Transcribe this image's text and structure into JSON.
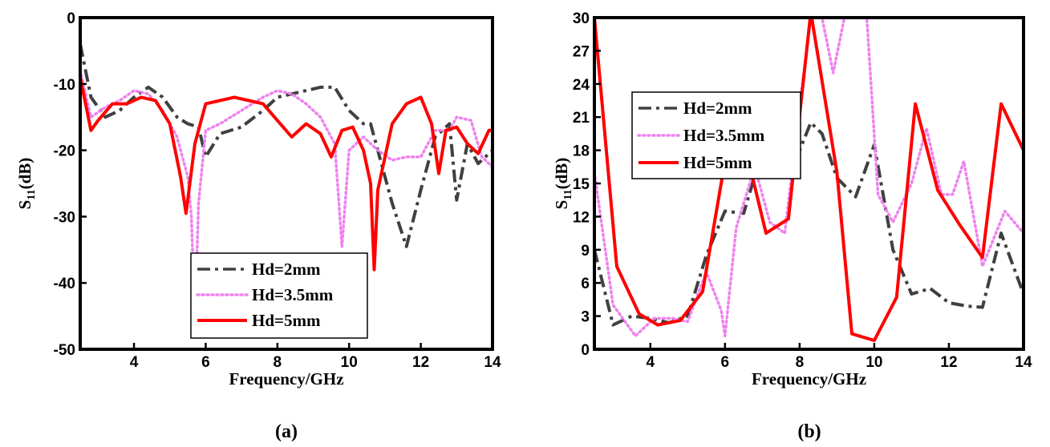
{
  "chart_data": [
    {
      "type": "line",
      "panel_label": "(a)",
      "xlabel": "Frequency/GHz",
      "ylabel_main": "S",
      "ylabel_sub": "11",
      "ylabel_suffix": "(dB)",
      "xlim": [
        2.5,
        14
      ],
      "ylim": [
        -50,
        0
      ],
      "xticks": [
        4,
        6,
        8,
        10,
        12,
        14
      ],
      "yticks": [
        -50,
        -40,
        -30,
        -20,
        -10,
        0
      ],
      "legend_placement": "lower-right",
      "series": [
        {
          "name": "Hd=2mm",
          "color": "#404040",
          "style": "dashdot",
          "x": [
            2.5,
            2.8,
            3.2,
            3.6,
            4.0,
            4.4,
            4.8,
            5.2,
            5.5,
            5.8,
            6.0,
            6.4,
            7.0,
            7.6,
            8.0,
            8.4,
            8.8,
            9.2,
            9.6,
            10.0,
            10.4,
            10.6,
            10.8,
            11.2,
            11.6,
            12.0,
            12.4,
            12.8,
            13.0,
            13.3,
            13.6,
            14.0
          ],
          "y": [
            -4,
            -12,
            -15,
            -14,
            -12,
            -10.5,
            -12,
            -15,
            -16,
            -16.5,
            -21,
            -17.5,
            -16.5,
            -14,
            -12,
            -11.5,
            -11,
            -10.5,
            -10.5,
            -14,
            -16,
            -16,
            -20,
            -28,
            -34.5,
            -26,
            -18,
            -16,
            -27.5,
            -19,
            -22,
            -20
          ]
        },
        {
          "name": "Hd=3.5mm",
          "color": "#ee82ee",
          "style": "dotted",
          "x": [
            2.5,
            2.8,
            3.2,
            3.6,
            4.0,
            4.4,
            4.8,
            5.2,
            5.5,
            5.6,
            5.7,
            5.8,
            6.0,
            6.4,
            7.0,
            7.6,
            8.0,
            8.4,
            8.8,
            9.2,
            9.6,
            9.8,
            10.0,
            10.4,
            10.8,
            11.2,
            11.6,
            12.0,
            12.4,
            12.8,
            13.0,
            13.4,
            13.7,
            14.0
          ],
          "y": [
            -8,
            -15,
            -13.5,
            -12.5,
            -11,
            -11.5,
            -14,
            -18,
            -24,
            -30,
            -46,
            -28,
            -17,
            -16,
            -14,
            -12,
            -11,
            -11.5,
            -13,
            -15,
            -19,
            -34.5,
            -20,
            -18,
            -20,
            -21.5,
            -21,
            -21,
            -17,
            -17,
            -15,
            -15.5,
            -21,
            -22.5
          ]
        },
        {
          "name": "Hd=5mm",
          "color": "#ff0000",
          "style": "solid",
          "x": [
            2.5,
            2.8,
            3.0,
            3.4,
            3.8,
            4.2,
            4.6,
            5.0,
            5.3,
            5.45,
            5.7,
            6.0,
            6.4,
            6.8,
            7.2,
            7.6,
            8.0,
            8.4,
            8.8,
            9.2,
            9.5,
            9.8,
            10.1,
            10.4,
            10.6,
            10.7,
            10.8,
            11.2,
            11.6,
            12.0,
            12.3,
            12.5,
            12.7,
            13.0,
            13.3,
            13.6,
            13.9,
            14.0
          ],
          "y": [
            -9,
            -17,
            -15.5,
            -13,
            -13,
            -12,
            -12.5,
            -16,
            -24,
            -29.5,
            -19,
            -13,
            -12.5,
            -12,
            -12.5,
            -13,
            -15.5,
            -18,
            -16,
            -17.5,
            -21,
            -17,
            -16.5,
            -20,
            -25,
            -38,
            -26,
            -16,
            -13,
            -12,
            -16,
            -23.5,
            -17,
            -16.5,
            -19,
            -20.5,
            -17,
            -17
          ]
        }
      ]
    },
    {
      "type": "line",
      "panel_label": "(b)",
      "xlabel": "Frequency/GHz",
      "ylabel_main": "S",
      "ylabel_sub": "11",
      "ylabel_suffix": "(dB)",
      "xlim": [
        2.5,
        14
      ],
      "ylim": [
        0,
        30
      ],
      "xticks": [
        4,
        6,
        8,
        10,
        12,
        14
      ],
      "yticks": [
        0,
        3,
        6,
        9,
        12,
        15,
        18,
        21,
        24,
        27,
        30
      ],
      "legend_placement": "top-left",
      "series": [
        {
          "name": "Hd=2mm",
          "color": "#404040",
          "style": "dashdot",
          "x": [
            2.5,
            3.0,
            3.5,
            4.0,
            4.5,
            5.0,
            5.5,
            6.0,
            6.5,
            7.0,
            7.5,
            8.0,
            8.3,
            8.6,
            9.0,
            9.5,
            10.0,
            10.5,
            11.0,
            11.5,
            12.0,
            12.5,
            12.9,
            13.4,
            14.0
          ],
          "y": [
            9,
            2.2,
            3,
            2.8,
            2.4,
            3,
            8.5,
            12.5,
            12.3,
            18,
            17,
            18,
            20.5,
            19.5,
            15.5,
            13.8,
            18.5,
            9,
            5,
            5.5,
            4.2,
            3.9,
            3.8,
            10.5,
            5
          ]
        },
        {
          "name": "Hd=3.5mm",
          "color": "#ee82ee",
          "style": "dotted",
          "x": [
            2.5,
            3.0,
            3.6,
            4.1,
            4.6,
            5.0,
            5.5,
            5.9,
            6.0,
            6.3,
            6.8,
            7.2,
            7.6,
            8.0,
            8.3,
            8.6,
            8.9,
            9.2,
            9.5,
            9.8,
            10.1,
            10.5,
            11.0,
            11.4,
            11.8,
            12.1,
            12.4,
            12.9,
            13.5,
            14.0
          ],
          "y": [
            16,
            4,
            1.2,
            2.8,
            2.8,
            2.5,
            7,
            3.5,
            1.2,
            11,
            16.5,
            11.5,
            10.5,
            22,
            30,
            30,
            25,
            30,
            30,
            30,
            14,
            11.5,
            15,
            20,
            14,
            14,
            17,
            7.5,
            12.5,
            10.5
          ]
        },
        {
          "name": "Hd=5mm",
          "color": "#ff0000",
          "style": "solid",
          "x": [
            2.5,
            3.1,
            3.7,
            4.2,
            4.8,
            5.4,
            6.0,
            6.6,
            7.1,
            7.7,
            8.3,
            9.0,
            9.4,
            10.0,
            10.6,
            11.1,
            11.7,
            12.3,
            12.9,
            13.4,
            14.0
          ],
          "y": [
            30,
            7.5,
            3.2,
            2.2,
            2.6,
            5.2,
            17,
            17.5,
            10.5,
            11.8,
            30.5,
            16,
            1.4,
            0.8,
            4.7,
            22.2,
            14.4,
            11.2,
            8.3,
            22.2,
            18
          ]
        }
      ]
    }
  ]
}
